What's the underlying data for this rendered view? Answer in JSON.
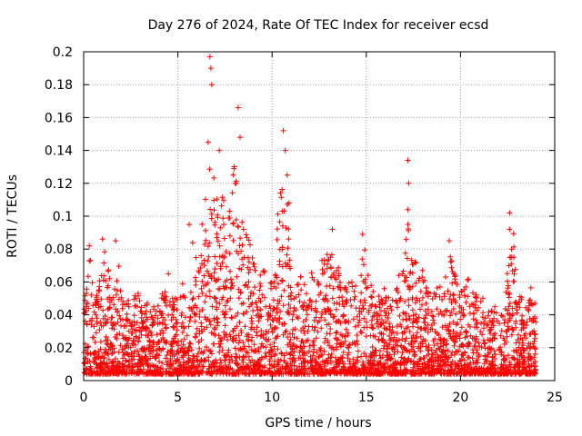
{
  "chart_data": {
    "type": "scatter",
    "title": "Day 276 of 2024, Rate Of TEC Index for receiver ecsd",
    "xlabel": "GPS time / hours",
    "ylabel": "ROTI / TECUs",
    "xlim": [
      0,
      25
    ],
    "ylim": [
      0,
      0.2
    ],
    "x_ticks": [
      "0",
      "5",
      "10",
      "15",
      "20",
      "25"
    ],
    "y_ticks": [
      "0",
      "0.02",
      "0.04",
      "0.06",
      "0.08",
      "0.1",
      "0.12",
      "0.14",
      "0.16",
      "0.18",
      "0.2"
    ],
    "grid": true,
    "marker": "plus",
    "color": "#ff0000",
    "envelope": {
      "x": [
        0.0,
        0.2,
        0.3,
        0.5,
        0.7,
        1.0,
        1.2,
        1.4,
        1.6,
        1.8,
        2.0,
        2.3,
        2.6,
        2.9,
        3.2,
        3.5,
        3.8,
        4.1,
        4.3,
        4.5,
        4.7,
        5.0,
        5.3,
        5.6,
        5.8,
        6.1,
        6.3,
        6.5,
        6.7,
        6.9,
        7.1,
        7.3,
        7.5,
        7.7,
        8.0,
        8.2,
        8.4,
        8.6,
        8.8,
        9.0,
        9.2,
        9.4,
        9.6,
        9.8,
        10.0,
        10.2,
        10.4,
        10.6,
        10.8,
        11.0,
        11.2,
        11.5,
        11.8,
        12.0,
        12.3,
        12.6,
        12.9,
        13.2,
        13.5,
        13.8,
        14.0,
        14.3,
        14.6,
        14.9,
        15.2,
        15.5,
        15.8,
        16.1,
        16.4,
        16.7,
        17.0,
        17.2,
        17.4,
        17.6,
        17.9,
        18.2,
        18.5,
        18.8,
        19.1,
        19.4,
        19.7,
        20.0,
        20.3,
        20.6,
        20.9,
        21.2,
        21.5,
        21.8,
        22.1,
        22.4,
        22.6,
        22.8,
        23.0,
        23.3,
        23.6,
        23.8,
        24.0
      ],
      "upper": [
        0.045,
        0.07,
        0.08,
        0.06,
        0.055,
        0.07,
        0.085,
        0.06,
        0.05,
        0.078,
        0.06,
        0.055,
        0.05,
        0.06,
        0.045,
        0.05,
        0.045,
        0.05,
        0.06,
        0.055,
        0.05,
        0.06,
        0.065,
        0.05,
        0.09,
        0.085,
        0.1,
        0.12,
        0.145,
        0.13,
        0.135,
        0.12,
        0.11,
        0.1,
        0.145,
        0.12,
        0.1,
        0.09,
        0.085,
        0.075,
        0.06,
        0.065,
        0.07,
        0.06,
        0.065,
        0.08,
        0.12,
        0.14,
        0.125,
        0.06,
        0.055,
        0.065,
        0.06,
        0.07,
        0.06,
        0.075,
        0.085,
        0.08,
        0.07,
        0.06,
        0.065,
        0.06,
        0.07,
        0.085,
        0.06,
        0.05,
        0.055,
        0.06,
        0.05,
        0.065,
        0.07,
        0.1,
        0.08,
        0.085,
        0.07,
        0.06,
        0.065,
        0.06,
        0.055,
        0.08,
        0.065,
        0.055,
        0.06,
        0.065,
        0.055,
        0.05,
        0.045,
        0.05,
        0.04,
        0.055,
        0.08,
        0.095,
        0.06,
        0.05,
        0.055,
        0.06,
        0.045
      ]
    },
    "spikes": [
      {
        "x": 0.3,
        "y": 0.082
      },
      {
        "x": 1.0,
        "y": 0.086
      },
      {
        "x": 1.7,
        "y": 0.085
      },
      {
        "x": 4.5,
        "y": 0.065
      },
      {
        "x": 5.6,
        "y": 0.095
      },
      {
        "x": 6.7,
        "y": 0.197
      },
      {
        "x": 6.75,
        "y": 0.19
      },
      {
        "x": 6.8,
        "y": 0.18
      },
      {
        "x": 6.6,
        "y": 0.145
      },
      {
        "x": 7.2,
        "y": 0.14
      },
      {
        "x": 8.2,
        "y": 0.166
      },
      {
        "x": 8.3,
        "y": 0.148
      },
      {
        "x": 8.1,
        "y": 0.12
      },
      {
        "x": 10.6,
        "y": 0.152
      },
      {
        "x": 10.7,
        "y": 0.14
      },
      {
        "x": 10.8,
        "y": 0.125
      },
      {
        "x": 10.9,
        "y": 0.108
      },
      {
        "x": 13.2,
        "y": 0.092
      },
      {
        "x": 14.8,
        "y": 0.089
      },
      {
        "x": 17.2,
        "y": 0.134
      },
      {
        "x": 17.25,
        "y": 0.12
      },
      {
        "x": 17.2,
        "y": 0.104
      },
      {
        "x": 19.4,
        "y": 0.085
      },
      {
        "x": 22.6,
        "y": 0.102
      },
      {
        "x": 22.6,
        "y": 0.092
      },
      {
        "x": 22.7,
        "y": 0.075
      }
    ]
  }
}
